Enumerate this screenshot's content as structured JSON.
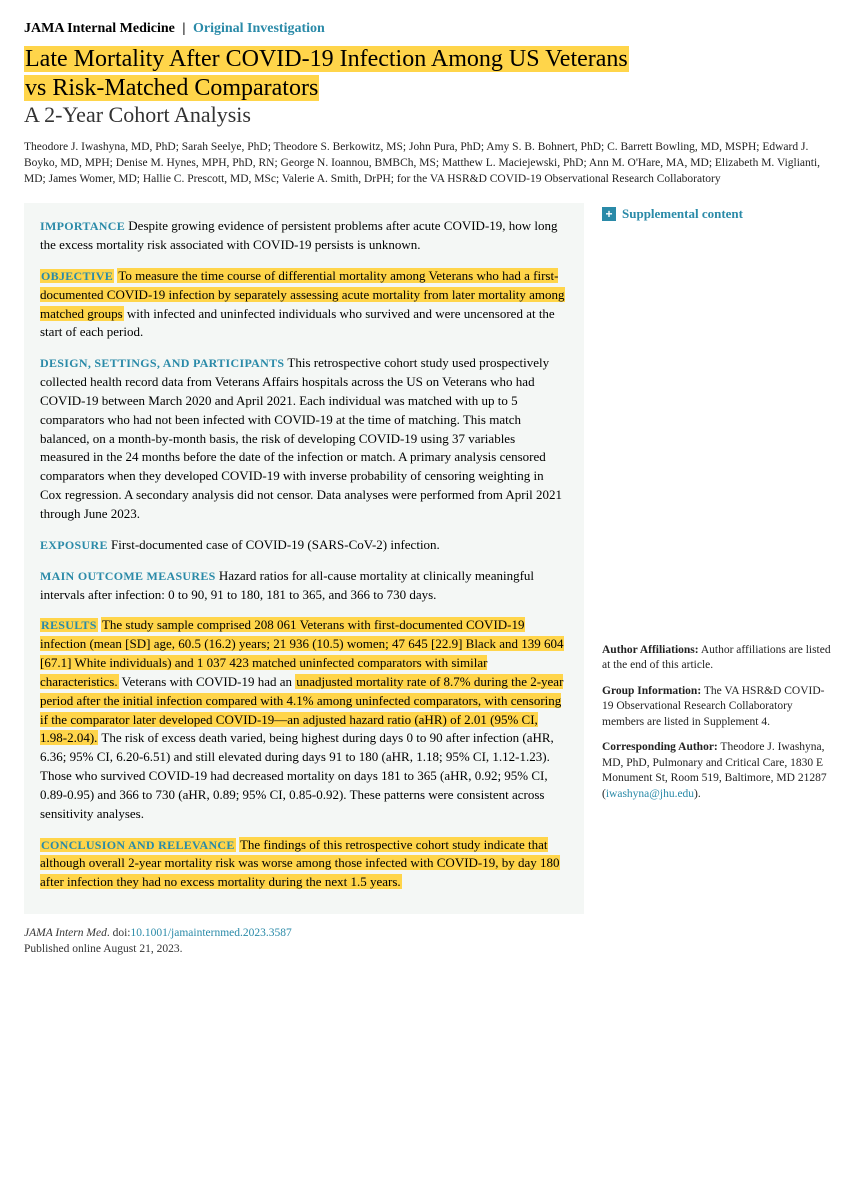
{
  "header": {
    "journal": "JAMA Internal Medicine",
    "separator": "|",
    "article_type": "Original Investigation"
  },
  "title": {
    "line1": "Late Mortality After COVID-19 Infection Among US Veterans",
    "line2": "vs Risk-Matched Comparators",
    "subtitle": "A 2-Year Cohort Analysis"
  },
  "authors": "Theodore J. Iwashyna, MD, PhD; Sarah Seelye, PhD; Theodore S. Berkowitz, MS; John Pura, PhD; Amy S. B. Bohnert, PhD; C. Barrett Bowling, MD, MSPH; Edward J. Boyko, MD, MPH; Denise M. Hynes, MPH, PhD, RN; George N. Ioannou, BMBCh, MS; Matthew L. Maciejewski, PhD; Ann M. O'Hare, MA, MD; Elizabeth M. Viglianti, MD; James Womer, MD; Hallie C. Prescott, MD, MSc; Valerie A. Smith, DrPH; for the VA HSR&D COVID-19 Observational Research Collaboratory",
  "abstract": {
    "importance": {
      "label": "IMPORTANCE",
      "text": "Despite growing evidence of persistent problems after acute COVID-19, how long the excess mortality risk associated with COVID-19 persists is unknown."
    },
    "objective": {
      "label": "OBJECTIVE",
      "hl1": "To measure the time course of differential mortality among Veterans who had a first-documented COVID-19 infection by separately assessing acute mortality from later mortality among matched groups",
      "tail": " with infected and uninfected individuals who survived and were uncensored at the start of each period."
    },
    "design": {
      "label": "DESIGN, SETTINGS, AND PARTICIPANTS",
      "text": "This retrospective cohort study used prospectively collected health record data from Veterans Affairs hospitals across the US on Veterans who had COVID-19 between March 2020 and April 2021. Each individual was matched with up to 5 comparators who had not been infected with COVID-19 at the time of matching. This match balanced, on a month-by-month basis, the risk of developing COVID-19 using 37 variables measured in the 24 months before the date of the infection or match. A primary analysis censored comparators when they developed COVID-19 with inverse probability of censoring weighting in Cox regression. A secondary analysis did not censor. Data analyses were performed from April 2021 through June 2023."
    },
    "exposure": {
      "label": "EXPOSURE",
      "text": "First-documented case of COVID-19 (SARS-CoV-2) infection."
    },
    "outcomes": {
      "label": "MAIN OUTCOME MEASURES",
      "text": "Hazard ratios for all-cause mortality at clinically meaningful intervals after infection: 0 to 90, 91 to 180, 181 to 365, and 366 to 730 days."
    },
    "results": {
      "label": "RESULTS",
      "hl1": "The study sample comprised 208 061 Veterans with first-documented COVID-19 infection (mean [SD] age, 60.5 (16.2) years; 21 936 (10.5) women; 47 645 [22.9] Black and 139 604 [67.1] White individuals) and 1 037 423 matched uninfected comparators with similar characteristics.",
      "mid1": " Veterans with COVID-19 had an ",
      "hl2": "unadjusted mortality rate of 8.7% during the 2-year period after the initial infection compared with 4.1% among uninfected comparators, with censoring if the comparator later developed COVID-19—an adjusted hazard ratio (aHR) of 2.01 (95% CI, 1.98-2.04).",
      "tail": " The risk of excess death varied, being highest during days 0 to 90 after infection (aHR, 6.36; 95% CI, 6.20-6.51) and still elevated during days 91 to 180 (aHR, 1.18; 95% CI, 1.12-1.23). Those who survived COVID-19 had decreased mortality on days 181 to 365 (aHR, 0.92; 95% CI, 0.89-0.95) and 366 to 730 (aHR, 0.89; 95% CI, 0.85-0.92). These patterns were consistent across sensitivity analyses."
    },
    "conclusion": {
      "label": "CONCLUSION AND RELEVANCE",
      "hl1": "The findings of this retrospective cohort study indicate that although overall 2-year mortality risk was worse among those infected with COVID-19, by day 180 after infection they had no excess mortality during the next 1.5 years."
    }
  },
  "sidebar": {
    "supplemental": "Supplemental content",
    "affiliations_label": "Author Affiliations:",
    "affiliations_text": " Author affiliations are listed at the end of this article.",
    "group_label": "Group Information:",
    "group_text": " The VA HSR&D COVID-19 Observational Research Collaboratory members are listed in Supplement 4.",
    "corr_label": "Corresponding Author:",
    "corr_text": " Theodore J. Iwashyna, MD, PhD, Pulmonary and Critical Care, 1830 E Monument St, Room 519, Baltimore, MD 21287 (",
    "corr_email": "iwashyna@jhu.edu",
    "corr_close": ")."
  },
  "footer": {
    "journal_ital": "JAMA Intern Med",
    "doi_prefix": ". doi:",
    "doi": "10.1001/jamainternmed.2023.3587",
    "pub": "Published online August 21, 2023."
  },
  "style": {
    "highlight_color": "#ffd54a",
    "accent_color": "#2a8aa8",
    "abstract_bg": "#f4f7f5"
  }
}
